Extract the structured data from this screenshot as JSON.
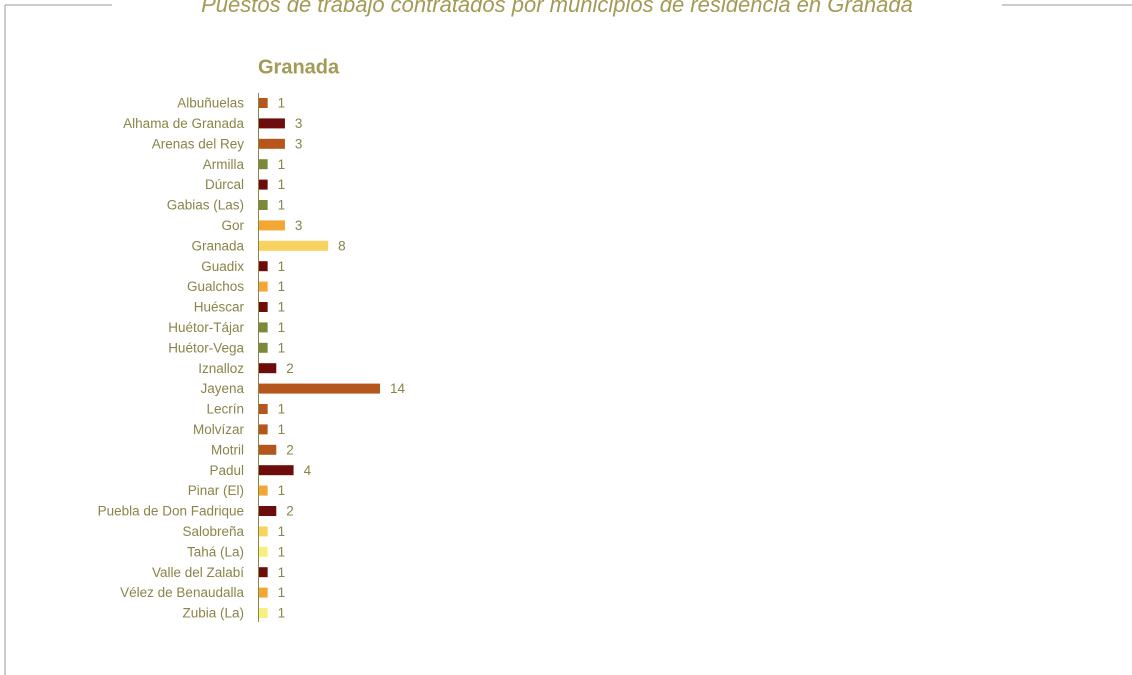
{
  "chart_data": {
    "type": "hbar",
    "title": "Puestos de trabajo contratados por municipios de residencia en Granada",
    "subtitle": "Granada",
    "categories": [
      "Albuñuelas",
      "Alhama de Granada",
      "Arenas del Rey",
      "Armilla",
      "Dúrcal",
      "Gabias (Las)",
      "Gor",
      "Granada",
      "Guadix",
      "Gualchos",
      "Huéscar",
      "Huétor-Tájar",
      "Huétor-Vega",
      "Iznalloz",
      "Jayena",
      "Lecrín",
      "Molvízar",
      "Motril",
      "Padul",
      "Pinar (El)",
      "Puebla de Don Fadrique",
      "Salobreña",
      "Tahá (La)",
      "Valle del Zalabí",
      "Vélez de Benaudalla",
      "Zubia (La)"
    ],
    "values": [
      1,
      3,
      3,
      1,
      1,
      1,
      3,
      8,
      1,
      1,
      1,
      1,
      1,
      2,
      14,
      1,
      1,
      2,
      4,
      1,
      2,
      1,
      1,
      1,
      1,
      1
    ],
    "colors": [
      "#b5561c",
      "#6e0c0c",
      "#b5561c",
      "#7b8a3a",
      "#6e0c0c",
      "#7b8a3a",
      "#f2a633",
      "#f8d25e",
      "#6e0c0c",
      "#f2a633",
      "#6e0c0c",
      "#7b8a3a",
      "#7b8a3a",
      "#6e0c0c",
      "#b5561c",
      "#b5561c",
      "#b5561c",
      "#b5561c",
      "#6e0c0c",
      "#f2a633",
      "#6e0c0c",
      "#f8d25e",
      "#f8f07e",
      "#6e0c0c",
      "#f2a633",
      "#f8f07e"
    ]
  }
}
